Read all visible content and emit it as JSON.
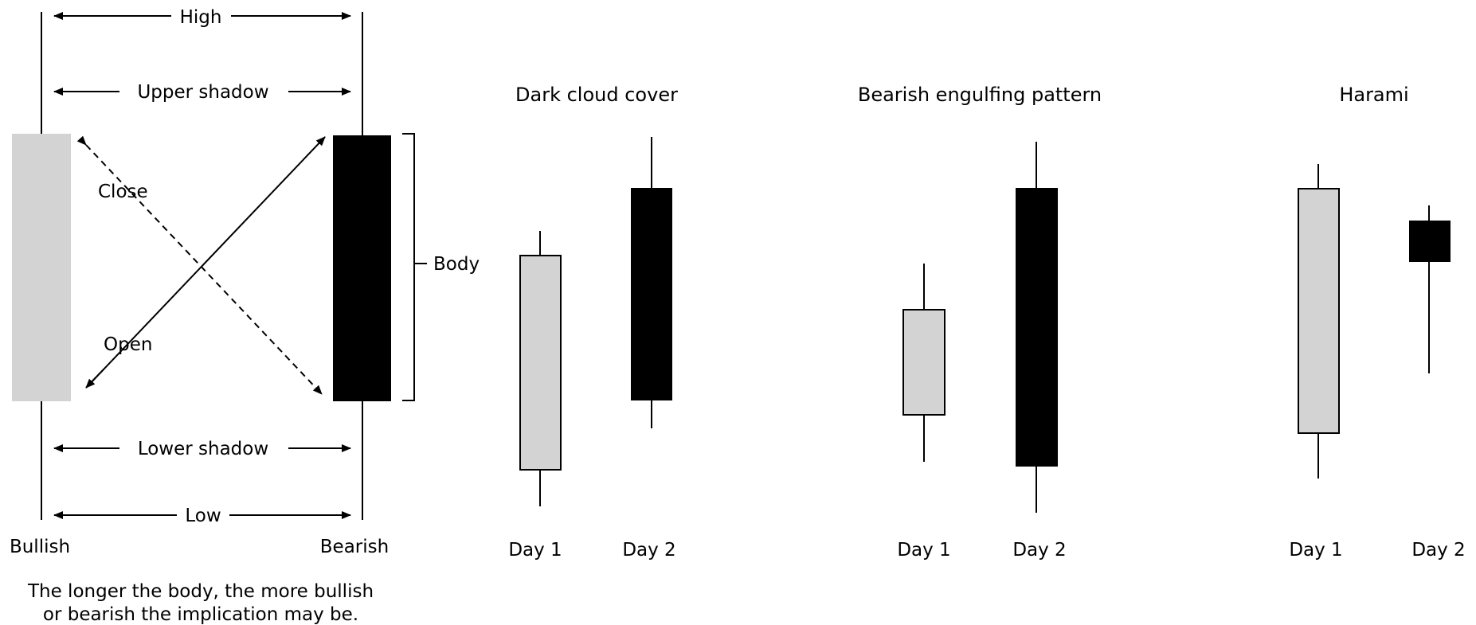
{
  "anatomy": {
    "high": "High",
    "upper_shadow": "Upper shadow",
    "close": "Close",
    "open": "Open",
    "body": "Body",
    "lower_shadow": "Lower shadow",
    "low": "Low",
    "bullish": "Bullish",
    "bearish": "Bearish",
    "note_line1": "The longer the body, the more bullish",
    "note_line2": "or bearish the implication may be."
  },
  "patterns": [
    {
      "title": "Dark cloud cover",
      "day1": "Day 1",
      "day2": "Day 2"
    },
    {
      "title": "Bearish engulfing pattern",
      "day1": "Day 1",
      "day2": "Day 2"
    },
    {
      "title": "Harami",
      "day1": "Day 1",
      "day2": "Day 2"
    }
  ],
  "colors": {
    "bullish_fill": "#d3d3d3",
    "bearish_fill": "#000000",
    "line": "#000000"
  }
}
